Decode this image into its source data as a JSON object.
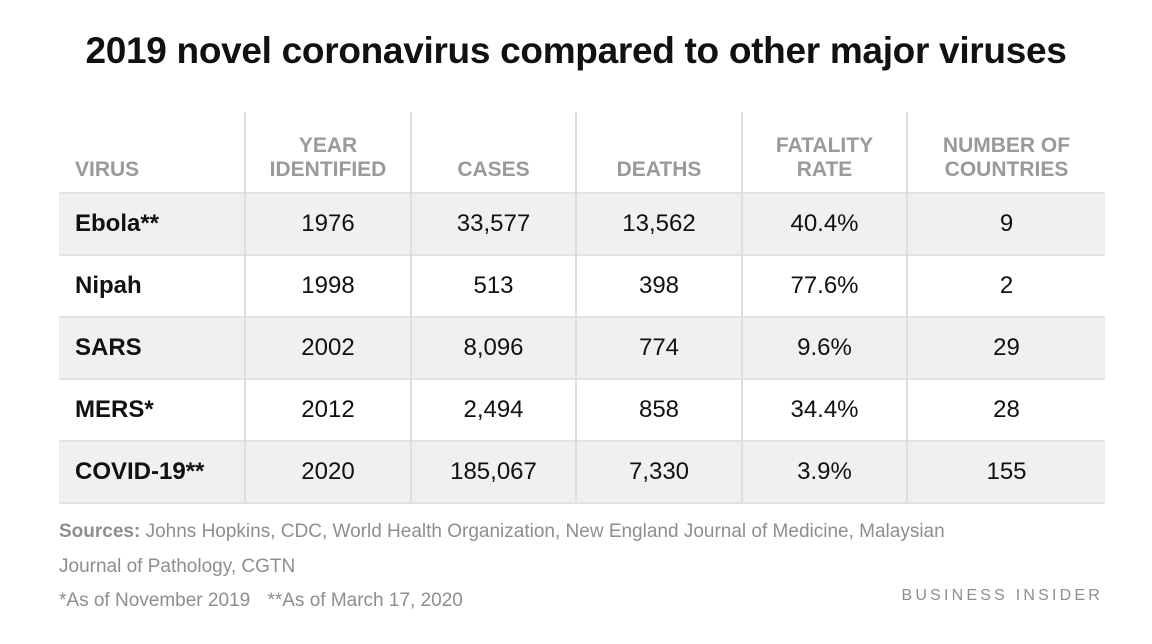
{
  "chart_data": {
    "type": "table",
    "title": "2019 novel coronavirus compared to other major viruses",
    "columns": [
      {
        "key": "virus",
        "label": [
          "VIRUS"
        ]
      },
      {
        "key": "year",
        "label": [
          "YEAR",
          "IDENTIFIED"
        ]
      },
      {
        "key": "cases",
        "label": [
          "CASES"
        ]
      },
      {
        "key": "deaths",
        "label": [
          "DEATHS"
        ]
      },
      {
        "key": "fatality",
        "label": [
          "FATALITY",
          "RATE"
        ]
      },
      {
        "key": "countries",
        "label": [
          "NUMBER OF",
          "COUNTRIES"
        ]
      }
    ],
    "rows": [
      {
        "virus": "Ebola**",
        "year": "1976",
        "cases": "33,577",
        "deaths": "13,562",
        "fatality": "40.4%",
        "countries": "9"
      },
      {
        "virus": "Nipah",
        "year": "1998",
        "cases": "513",
        "deaths": "398",
        "fatality": "77.6%",
        "countries": "2"
      },
      {
        "virus": "SARS",
        "year": "2002",
        "cases": "8,096",
        "deaths": "774",
        "fatality": "9.6%",
        "countries": "29"
      },
      {
        "virus": "MERS*",
        "year": "2012",
        "cases": "2,494",
        "deaths": "858",
        "fatality": "34.4%",
        "countries": "28"
      },
      {
        "virus": "COVID-19**",
        "year": "2020",
        "cases": "185,067",
        "deaths": "7,330",
        "fatality": "3.9%",
        "countries": "155"
      }
    ]
  },
  "sources": {
    "label": "Sources:",
    "text": "Johns Hopkins, CDC, World Health Organization, New England Journal of Medicine, Malaysian Journal of Pathology, CGTN"
  },
  "footnotes": [
    "*As of November 2019",
    "**As of March 17, 2020"
  ],
  "brand": "BUSINESS INSIDER",
  "colors": {
    "title": "#111111",
    "header_text": "#9a9a9a",
    "row_shade": "#f0f0f0",
    "grid_line": "#dedede",
    "footnote_text": "#8e8e8e"
  }
}
